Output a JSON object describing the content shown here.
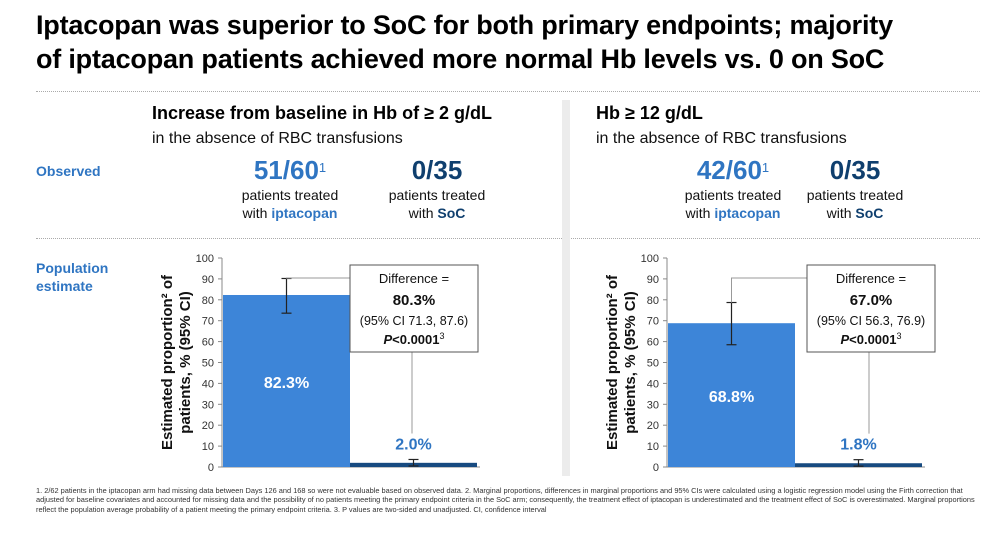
{
  "title_line1": "Iptacopan was superior to SoC for both primary endpoints; majority",
  "title_line2": "of iptacopan patients achieved more normal Hb levels vs. 0 on SoC",
  "row_labels": {
    "observed": "Observed",
    "population_1": "Population",
    "population_2": "estimate"
  },
  "colors": {
    "iptacopan": "#3d85d8",
    "soc": "#174a80",
    "accent": "#2f75c2"
  },
  "left_panel": {
    "title": "Increase from baseline in Hb of ≥ 2 g/dL",
    "subtitle": "in the absence of RBC transfusions",
    "ipt_value": "51/60",
    "ipt_sup": "1",
    "ipt_line1": "patients treated",
    "ipt_line2_pre": "with ",
    "ipt_line2_drug": "iptacopan",
    "soc_value": "0/35",
    "soc_line1": "patients treated",
    "soc_line2_pre": "with ",
    "soc_line2_drug": "SoC"
  },
  "right_panel": {
    "title": "Hb ≥ 12 g/dL",
    "subtitle": "in the absence of RBC transfusions",
    "ipt_value": "42/60",
    "ipt_sup": "1",
    "ipt_line1": "patients treated",
    "ipt_line2_pre": "with ",
    "ipt_line2_drug": "iptacopan",
    "soc_value": "0/35",
    "soc_line1": "patients treated",
    "soc_line2_pre": "with ",
    "soc_line2_drug": "SoC"
  },
  "chart_data": [
    {
      "type": "bar",
      "ylabel_line1": "Estimated proportion² of",
      "ylabel_line2": "patients, % (95% CI)",
      "ylim": [
        0,
        100
      ],
      "yticks": [
        0,
        10,
        20,
        30,
        40,
        50,
        60,
        70,
        80,
        90,
        100
      ],
      "bars": [
        {
          "group": "iptacopan",
          "value": 82.3,
          "label": "82.3%",
          "ci": [
            73.6,
            90.2
          ]
        },
        {
          "group": "SoC",
          "value": 2.0,
          "label": "2.0%",
          "ci": [
            0.5,
            3.6
          ]
        }
      ],
      "difference": {
        "line1": "Difference =",
        "value": "80.3%",
        "ci": "(95% CI 71.3, 87.6)",
        "p": "P",
        "p_rest": "<0.0001",
        "p_sup": "3"
      }
    },
    {
      "type": "bar",
      "ylabel_line1": "Estimated proportion² of",
      "ylabel_line2": "patients, % (95% CI)",
      "ylim": [
        0,
        100
      ],
      "yticks": [
        0,
        10,
        20,
        30,
        40,
        50,
        60,
        70,
        80,
        90,
        100
      ],
      "bars": [
        {
          "group": "iptacopan",
          "value": 68.8,
          "label": "68.8%",
          "ci": [
            58.5,
            78.7
          ]
        },
        {
          "group": "SoC",
          "value": 1.8,
          "label": "1.8%",
          "ci": [
            0.4,
            3.5
          ]
        }
      ],
      "difference": {
        "line1": "Difference =",
        "value": "67.0%",
        "ci": "(95% CI 56.3, 76.9)",
        "p": "P",
        "p_rest": "<0.0001",
        "p_sup": "3"
      }
    }
  ],
  "footnote": "1. 2/62 patients in the iptacopan arm had missing data between Days 126 and 168 so were not evaluable based on observed data.   2. Marginal proportions, differences in marginal proportions and 95% CIs were calculated using a logistic regression model using the Firth correction that adjusted for baseline covariates and accounted for missing data and the possibility of no patients meeting the primary endpoint criteria in the SoC arm; consequently, the treatment effect of iptacopan is underestimated and the treatment effect of SoC is overestimated. Marginal proportions reflect the population average probability of a patient meeting the primary endpoint criteria.   3. P values are two-sided and unadjusted. CI, confidence interval"
}
